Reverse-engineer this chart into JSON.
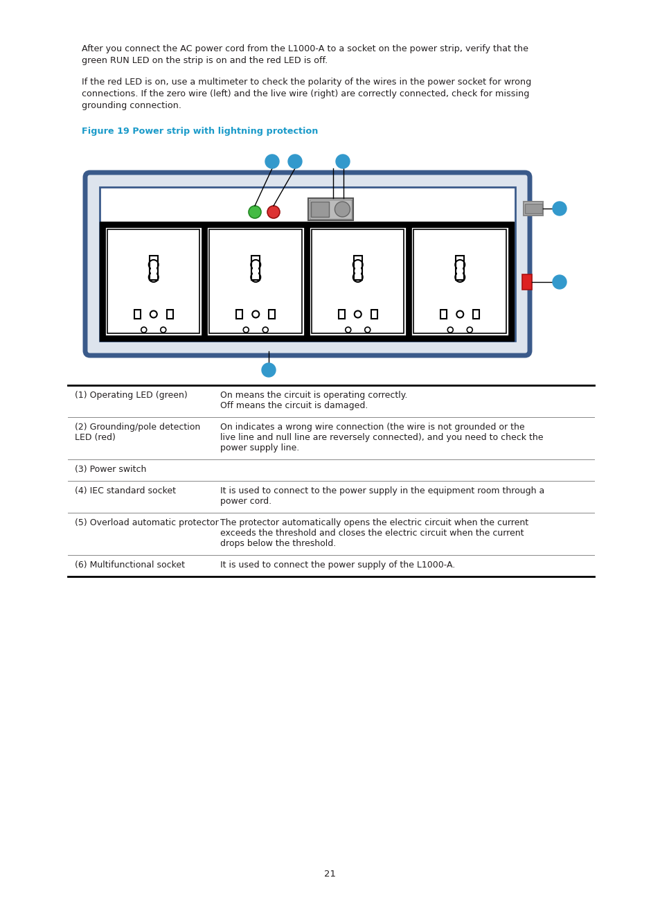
{
  "bg_color": "#ffffff",
  "text_color": "#231f20",
  "cyan_dot_color": "#3399cc",
  "figure_title_color": "#1a9ac9",
  "page_number": "21",
  "para1_line1": "After you connect the AC power cord from the L1000-A to a socket on the power strip, verify that the",
  "para1_line2": "green RUN LED on the strip is on and the red LED is off.",
  "para2_line1": "If the red LED is on, use a multimeter to check the polarity of the wires in the power socket for wrong",
  "para2_line2": "connections. If the zero wire (left) and the live wire (right) are correctly connected, check for missing",
  "para2_line3": "grounding connection.",
  "figure_title": "Figure 19 Power strip with lightning protection",
  "strip_body_color": "#3a5a8a",
  "strip_bg_color": "#dde4ed",
  "socket_bg": "#ffffff",
  "table_rows": [
    {
      "col1": "(1) Operating LED (green)",
      "col2_lines": [
        "On means the circuit is operating correctly.",
        "Off means the circuit is damaged."
      ]
    },
    {
      "col1": "(2) Grounding/pole detection\nLED (red)",
      "col2_lines": [
        "On indicates a wrong wire connection (the wire is not grounded or the",
        "live line and null line are reversely connected), and you need to check the",
        "power supply line."
      ]
    },
    {
      "col1": "(3) Power switch",
      "col2_lines": []
    },
    {
      "col1": "(4) IEC standard socket",
      "col2_lines": [
        "It is used to connect to the power supply in the equipment room through a",
        "power cord."
      ]
    },
    {
      "col1": "(5) Overload automatic protector",
      "col2_lines": [
        "The protector automatically opens the electric circuit when the current",
        "exceeds the threshold and closes the electric circuit when the current",
        "drops below the threshold."
      ]
    },
    {
      "col1": "(6) Multifunctional socket",
      "col2_lines": [
        "It is used to connect the power supply of the L1000-A."
      ]
    }
  ]
}
